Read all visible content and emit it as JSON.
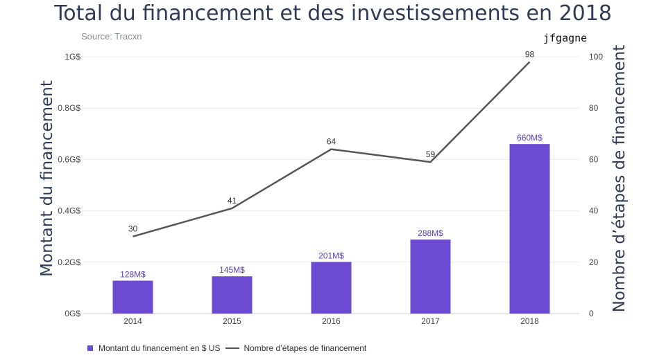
{
  "title": "Total du financement et des investissements en 2018",
  "source": "Source: Tracxn",
  "watermark": "jfgagne",
  "legend": {
    "bar_label": "Montant du financement en $ US",
    "line_label": "Nombre d’étapes de financement"
  },
  "colors": {
    "bar": "#6a4bd1",
    "line": "#555555",
    "bar_label": "#5a3fc0",
    "title": "#2f3a55"
  },
  "chart_data": {
    "type": "bar",
    "title": "Total du financement et des investissements en 2018",
    "categories": [
      "2014",
      "2015",
      "2016",
      "2017",
      "2018"
    ],
    "series": [
      {
        "name": "Montant du financement en $ US",
        "type": "bar",
        "axis": "left",
        "values": [
          128,
          145,
          201,
          288,
          660
        ],
        "labels": [
          "128M$",
          "145M$",
          "201M$",
          "288M$",
          "660M$"
        ]
      },
      {
        "name": "Nombre d’étapes de financement",
        "type": "line",
        "axis": "right",
        "values": [
          30,
          41,
          64,
          59,
          98
        ],
        "labels": [
          "30",
          "41",
          "64",
          "59",
          "98"
        ]
      }
    ],
    "ylabel_left": "Montant du financement",
    "ylabel_right": "Nombre d’étapes de financement",
    "ylim_left": [
      0,
      1000
    ],
    "ylim_right": [
      0,
      100
    ],
    "yticks_left": [
      "0G$",
      "0.2G$",
      "0.4G$",
      "0.6G$",
      "0.8G$",
      "1G$"
    ],
    "yticks_right": [
      "0",
      "20",
      "40",
      "60",
      "80",
      "100"
    ],
    "grid": true,
    "legend_position": "bottom-left"
  }
}
